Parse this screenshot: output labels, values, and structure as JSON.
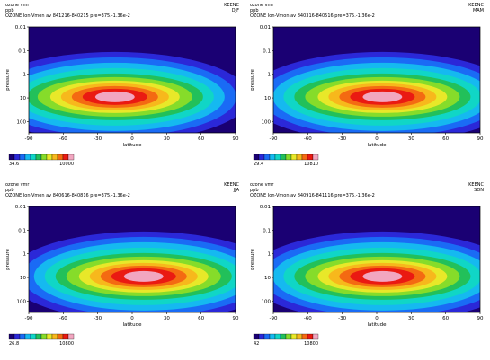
{
  "palette": [
    "#1a0073",
    "#2b28d8",
    "#1a6bf5",
    "#15b9f0",
    "#10d6c6",
    "#22c05a",
    "#86dc2a",
    "#e8e829",
    "#f7b81c",
    "#f46a12",
    "#ea1a12",
    "#f2a6c0"
  ],
  "panels": [
    {
      "header": {
        "line1": "ozone vmr",
        "line2": "ppb",
        "line3": "OZONE Ion-Vmon av 841216-840215 pre=375.-1.36e-2",
        "source": "KEENC",
        "season": "DJF"
      },
      "colorbar": {
        "min_label": "34.6",
        "max_label": "10000"
      },
      "chart_data": {
        "type": "heatmap",
        "xlabel": "latitude",
        "ylabel": "pressure",
        "x_ticks": [
          "-90",
          "-60",
          "-30",
          "0",
          "30",
          "60",
          "90"
        ],
        "y_ticks": [
          "0.01",
          "0.1",
          "1",
          "10",
          "100"
        ],
        "xlim": [
          -90,
          90
        ],
        "ylim": [
          0.01,
          300
        ],
        "y_scale": "log",
        "center_lat": -15,
        "levels": [
          {
            "level": 1,
            "x": -90
          }
        ]
      }
    },
    {
      "header": {
        "line1": "ozone vmr",
        "line2": "ppb",
        "line3": "OZONE Ion-Vmon av 840316-840516 pre=375.-1.36e-2",
        "source": "KEENC",
        "season": "MAM"
      },
      "colorbar": {
        "min_label": "29.4",
        "max_label": "10810"
      },
      "chart_data": {
        "type": "heatmap",
        "xlabel": "latitude",
        "ylabel": "pressure",
        "x_ticks": [
          "-90",
          "-60",
          "-30",
          "0",
          "30",
          "60",
          "90"
        ],
        "y_ticks": [
          "0.01",
          "0.1",
          "1",
          "10",
          "100"
        ],
        "xlim": [
          -90,
          90
        ],
        "ylim": [
          0.01,
          300
        ],
        "y_scale": "log",
        "center_lat": 5
      }
    },
    {
      "header": {
        "line1": "ozone vmr",
        "line2": "ppb",
        "line3": "OZONE Ion-Vmon av 840616-840816 pre=375.-1.36e-2",
        "source": "KEENC",
        "season": "JJA"
      },
      "colorbar": {
        "min_label": "26.8",
        "max_label": "10800"
      },
      "chart_data": {
        "type": "heatmap",
        "xlabel": "latitude",
        "ylabel": "pressure",
        "x_ticks": [
          "-90",
          "-60",
          "-30",
          "0",
          "30",
          "60",
          "90"
        ],
        "y_ticks": [
          "0.01",
          "0.1",
          "1",
          "10",
          "100"
        ],
        "xlim": [
          -90,
          90
        ],
        "ylim": [
          0.01,
          300
        ],
        "y_scale": "log",
        "center_lat": 10
      }
    },
    {
      "header": {
        "line1": "ozone vmr",
        "line2": "ppb",
        "line3": "OZONE Ion-Vmon av 840916-841116 pre=375.-1.36e-2",
        "source": "KEENC",
        "season": "SON"
      },
      "colorbar": {
        "min_label": "42",
        "max_label": "10800"
      },
      "chart_data": {
        "type": "heatmap",
        "xlabel": "latitude",
        "ylabel": "pressure",
        "x_ticks": [
          "-90",
          "-60",
          "-30",
          "0",
          "30",
          "60",
          "90"
        ],
        "y_ticks": [
          "0.01",
          "0.1",
          "1",
          "10",
          "100"
        ],
        "xlim": [
          -90,
          90
        ],
        "ylim": [
          0.01,
          300
        ],
        "y_scale": "log",
        "center_lat": 5
      }
    }
  ]
}
